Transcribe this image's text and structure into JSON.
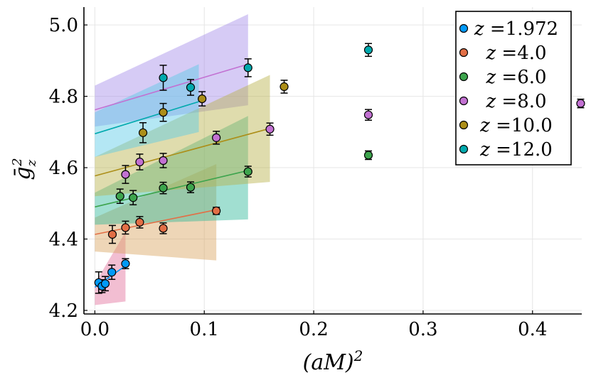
{
  "chart_data": {
    "type": "scatter",
    "title": "",
    "xlabel": "(aM)^2",
    "ylabel": "ḡ_z^2",
    "xlim": [
      -0.01,
      0.445
    ],
    "ylim": [
      4.19,
      5.05
    ],
    "grid": true,
    "legend_position": "top-right",
    "x_ticks": [
      0.0,
      0.1,
      0.2,
      0.3,
      0.4
    ],
    "x_tick_labels": [
      "0.0",
      "0.1",
      "0.2",
      "0.3",
      "0.4"
    ],
    "y_ticks": [
      4.2,
      4.4,
      4.6,
      4.8,
      5.0
    ],
    "y_tick_labels": [
      "4.2",
      "4.4",
      "4.6",
      "4.8",
      "5.0"
    ],
    "series": [
      {
        "name": "z =1.972",
        "label_prefix": "z =",
        "label_value": "1.972",
        "color": "#009af9",
        "points": [
          {
            "x": 0.0035,
            "y": 4.278,
            "err": 0.03
          },
          {
            "x": 0.0065,
            "y": 4.268,
            "err": 0.018
          },
          {
            "x": 0.0095,
            "y": 4.275,
            "err": 0.02
          },
          {
            "x": 0.0155,
            "y": 4.307,
            "err": 0.02
          },
          {
            "x": 0.028,
            "y": 4.331,
            "err": 0.014
          }
        ],
        "fit": {
          "x0": 0.0,
          "x1": 0.028,
          "y0": 4.265,
          "y1": 4.325
        },
        "band": {
          "x0": 0.0,
          "x1": 0.028,
          "low0": 4.215,
          "high0": 4.275,
          "low1": 4.225,
          "high1": 4.42
        },
        "band_color": "#e26f9b"
      },
      {
        "name": "z =4.0",
        "label_prefix": "z =",
        "label_value": "4.0",
        "color": "#e26f46",
        "points": [
          {
            "x": 0.016,
            "y": 4.413,
            "err": 0.025
          },
          {
            "x": 0.028,
            "y": 4.432,
            "err": 0.018
          },
          {
            "x": 0.041,
            "y": 4.447,
            "err": 0.016
          },
          {
            "x": 0.0625,
            "y": 4.43,
            "err": 0.015
          },
          {
            "x": 0.111,
            "y": 4.479,
            "err": 0.01
          }
        ],
        "fit": {
          "x0": 0.0,
          "x1": 0.111,
          "y0": 4.413,
          "y1": 4.482
        },
        "band": {
          "x0": 0.0,
          "x1": 0.111,
          "low0": 4.365,
          "high0": 4.46,
          "low1": 4.34,
          "high1": 4.61
        },
        "band_color": "#d9a35f"
      },
      {
        "name": "z =6.0",
        "label_prefix": "z =",
        "label_value": "6.0",
        "color": "#3da44d",
        "points": [
          {
            "x": 0.023,
            "y": 4.52,
            "err": 0.02
          },
          {
            "x": 0.035,
            "y": 4.516,
            "err": 0.02
          },
          {
            "x": 0.0625,
            "y": 4.543,
            "err": 0.016
          },
          {
            "x": 0.0875,
            "y": 4.545,
            "err": 0.015
          },
          {
            "x": 0.14,
            "y": 4.589,
            "err": 0.015
          },
          {
            "x": 0.25,
            "y": 4.635,
            "err": 0.012
          }
        ],
        "fit": {
          "x0": 0.0,
          "x1": 0.14,
          "y0": 4.49,
          "y1": 4.592
        },
        "band": {
          "x0": 0.0,
          "x1": 0.14,
          "low0": 4.44,
          "high0": 4.53,
          "low1": 4.455,
          "high1": 4.745
        },
        "band_color": "#2fb79a"
      },
      {
        "name": "z =8.0",
        "label_prefix": "z =",
        "label_value": "8.0",
        "color": "#c271d2",
        "points": [
          {
            "x": 0.028,
            "y": 4.581,
            "err": 0.025
          },
          {
            "x": 0.041,
            "y": 4.616,
            "err": 0.022
          },
          {
            "x": 0.0625,
            "y": 4.62,
            "err": 0.02
          },
          {
            "x": 0.111,
            "y": 4.684,
            "err": 0.018
          },
          {
            "x": 0.16,
            "y": 4.708,
            "err": 0.017
          },
          {
            "x": 0.25,
            "y": 4.748,
            "err": 0.015
          },
          {
            "x": 0.444,
            "y": 4.78,
            "err": 0.012
          }
        ],
        "fit": {
          "x0": 0.0,
          "x1": 0.14,
          "y0": 4.762,
          "y1": 4.89
        },
        "band": {
          "x0": 0.0,
          "x1": 0.14,
          "low0": 4.715,
          "high0": 4.83,
          "low1": 4.775,
          "high1": 5.03
        },
        "band_color": "#a58be8"
      },
      {
        "name": "z =10.0",
        "label_prefix": "z =",
        "label_value": "10.0",
        "color": "#ac8e18",
        "points": [
          {
            "x": 0.044,
            "y": 4.698,
            "err": 0.028
          },
          {
            "x": 0.0625,
            "y": 4.755,
            "err": 0.025
          },
          {
            "x": 0.098,
            "y": 4.793,
            "err": 0.02
          },
          {
            "x": 0.173,
            "y": 4.827,
            "err": 0.018
          }
        ],
        "fit": {
          "x0": 0.0,
          "x1": 0.16,
          "y0": 4.577,
          "y1": 4.71
        },
        "band": {
          "x0": 0.0,
          "x1": 0.16,
          "low0": 4.52,
          "high0": 4.63,
          "low1": 4.56,
          "high1": 4.86
        },
        "band_color": "#b7b24a"
      },
      {
        "name": "z =12.0",
        "label_prefix": "z =",
        "label_value": "12.0",
        "color": "#00a9ad",
        "points": [
          {
            "x": 0.0625,
            "y": 4.852,
            "err": 0.035
          },
          {
            "x": 0.0875,
            "y": 4.825,
            "err": 0.022
          },
          {
            "x": 0.14,
            "y": 4.88,
            "err": 0.025
          },
          {
            "x": 0.25,
            "y": 4.93,
            "err": 0.018
          }
        ],
        "fit": {
          "x0": 0.0,
          "x1": 0.095,
          "y0": 4.695,
          "y1": 4.785
        },
        "band": {
          "x0": 0.0,
          "x1": 0.095,
          "low0": 4.63,
          "high0": 4.755,
          "low1": 4.7,
          "high1": 4.89
        },
        "band_color": "#58c9e6"
      }
    ]
  }
}
